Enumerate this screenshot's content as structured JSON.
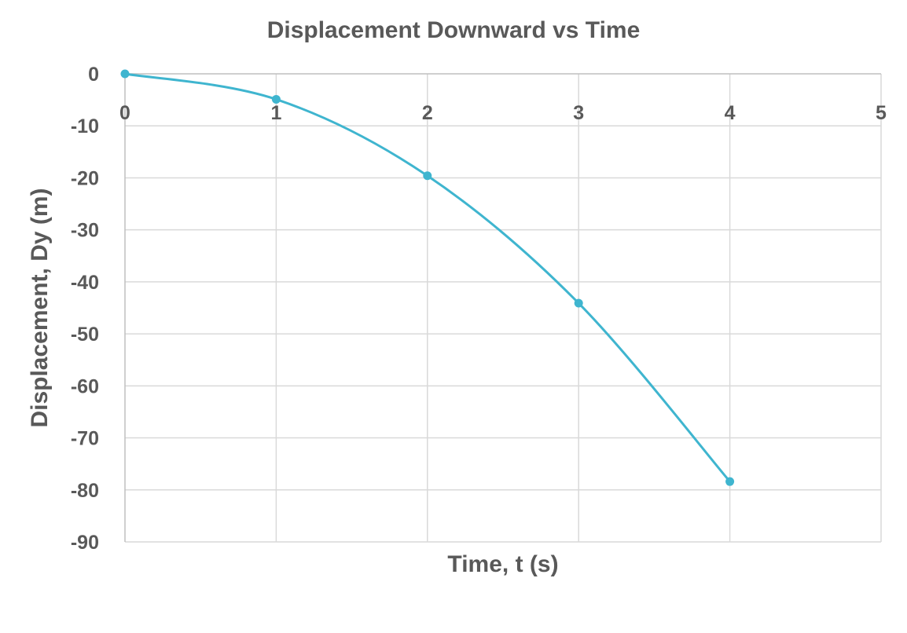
{
  "chart_data": {
    "type": "scatter",
    "title": "Displacement Downward vs Time",
    "xlabel": "Time, t (s)",
    "ylabel": "Displacement, Dy (m)",
    "xlim": [
      0,
      5
    ],
    "ylim": [
      -90,
      0
    ],
    "x_ticks": [
      "0",
      "1",
      "2",
      "3",
      "4",
      "5"
    ],
    "y_ticks": [
      "0",
      "-10",
      "-20",
      "-30",
      "-40",
      "-50",
      "-60",
      "-70",
      "-80",
      "-90"
    ],
    "grid": true,
    "line_style": "smooth",
    "series": [
      {
        "x": [
          0,
          1,
          2,
          3,
          4
        ],
        "y": [
          0,
          -4.9,
          -19.6,
          -44.1,
          -78.4
        ]
      }
    ],
    "colors": {
      "series": "#3fb5cf",
      "grid": "#d9d9d9",
      "text": "#595959"
    }
  }
}
